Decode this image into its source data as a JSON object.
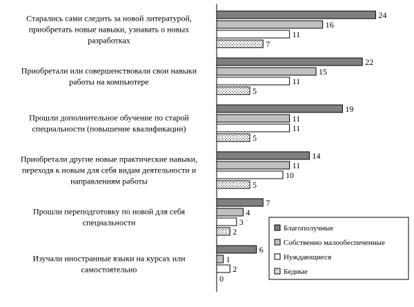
{
  "chart_data": {
    "type": "bar",
    "orientation": "horizontal",
    "categories": [
      "Старались сами следить за новой литературой, приобретать новые навыки, узнавать о новых разработках",
      "Приобретали или совершенствовали свои навыки работы на компьютере",
      "Прошли дополнительное обучение по старой специальности (повышение квалификации)",
      "Приобретали другие новые практические навыки, переходя к новым для себя видам деятельности и направлениям работы",
      "Прошли переподготовку по новой для себя специальности",
      "Изучали иностранные языки на курсах или самостоятельно"
    ],
    "category_lines": [
      [
        "Старались сами следить за новой литературой,",
        "приобретать новые навыки, узнавать о новых",
        "разработках"
      ],
      [
        "Приобретали или совершенствовали свои навыки",
        "работы на компьютере"
      ],
      [
        "Прошли дополнительное обучение по старой",
        "специальности (повышение квалификации)"
      ],
      [
        "Приобретали другие новые практические навыки,",
        "переходя к новым для себя видам деятельности и",
        "направлениям работы"
      ],
      [
        "Прошли переподготовку по новой для себя",
        "специальности"
      ],
      [
        "Изучали иностранные языки на курсах или",
        "самостоятельно"
      ]
    ],
    "series": [
      {
        "name": "Благополучные",
        "values": [
          24,
          22,
          19,
          14,
          7,
          6
        ],
        "fill": "#7f7f7f",
        "pattern": "solid"
      },
      {
        "name": "Собственно малообеспеченные",
        "values": [
          16,
          15,
          11,
          11,
          4,
          1
        ],
        "fill": "#c0c0c0",
        "pattern": "solid"
      },
      {
        "name": "Нуждающиеся",
        "values": [
          11,
          11,
          11,
          10,
          3,
          2
        ],
        "fill": "#ffffff",
        "pattern": "solid"
      },
      {
        "name": "Бедные",
        "values": [
          7,
          5,
          5,
          5,
          2,
          0
        ],
        "fill": "#ffffff",
        "pattern": "dots"
      }
    ],
    "xlim": [
      0,
      24
    ],
    "grid": false,
    "legend": "bottom-right"
  }
}
